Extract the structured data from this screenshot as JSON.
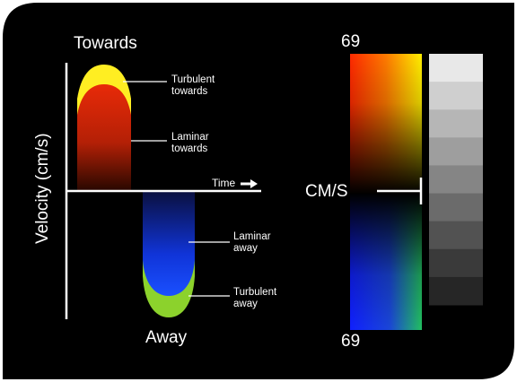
{
  "labels": {
    "towards": "Towards",
    "away": "Away",
    "time": "Time",
    "velocity_axis": "Velocity (cm/s)",
    "cms": "CM/S",
    "scale_top": "69",
    "scale_bottom": "69"
  },
  "annotations": {
    "turbulent_towards": [
      "Turbulent",
      "towards"
    ],
    "laminar_towards": [
      "Laminar",
      "towards"
    ],
    "laminar_away": [
      "Laminar",
      "away"
    ],
    "turbulent_away": [
      "Turbulent",
      "away"
    ]
  },
  "colors": {
    "background": "#000000",
    "turbulent_towards": "#ffee22",
    "laminar_towards_top": "#e82a08",
    "laminar_towards_bottom": "#2a0800",
    "laminar_away_top": "#0a1040",
    "laminar_away_bottom": "#1246ff",
    "turbulent_away": "#8cd22c"
  },
  "grayscale_steps": [
    "#e8e8e8",
    "#cfcfcf",
    "#b6b6b6",
    "#9e9e9e",
    "#858585",
    "#6b6b6b",
    "#525252",
    "#3a3a3a",
    "#262626"
  ]
}
